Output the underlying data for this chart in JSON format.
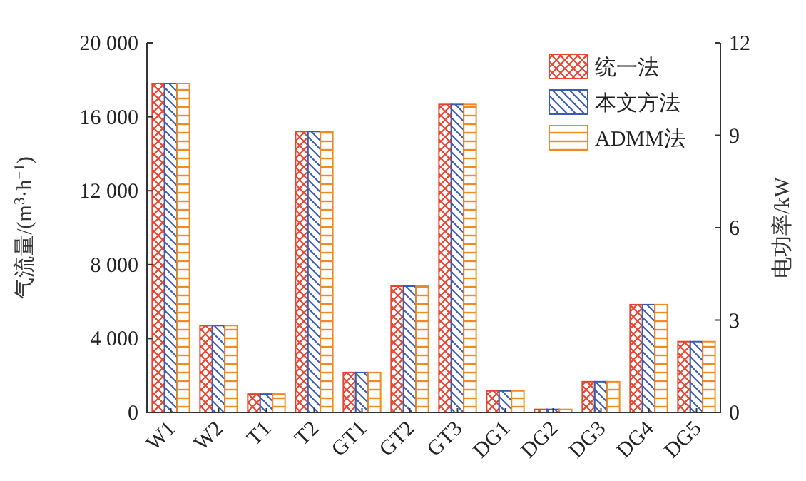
{
  "chart_data": {
    "type": "bar",
    "ylabel": "气流量/(m$^{3}$·h$^{−1}$)",
    "y2label": "电功率/kW",
    "categories": [
      "W1",
      "W2",
      "T1",
      "T2",
      "GT1",
      "GT2",
      "GT3",
      "DG1",
      "DG2",
      "DG3",
      "DG4",
      "DG5"
    ],
    "series": [
      {
        "name": "统一法",
        "color": "#e8412c",
        "axis": "y",
        "values": [
          17800,
          4700,
          1000,
          15200,
          null,
          null,
          null,
          null,
          null,
          null,
          null,
          null
        ]
      },
      {
        "name": "本文方法",
        "color": "#3a5bb0",
        "axis": "y",
        "values": [
          17800,
          4700,
          1000,
          15200,
          null,
          null,
          null,
          null,
          null,
          null,
          null,
          null
        ]
      },
      {
        "name": "ADMM法",
        "color": "#f08a24",
        "axis": "y",
        "values": [
          17800,
          4700,
          1000,
          15200,
          null,
          null,
          null,
          null,
          null,
          null,
          null,
          null
        ]
      },
      {
        "color": "#e8412c",
        "axis": "y2",
        "values": [
          null,
          null,
          null,
          null,
          1.3,
          4.1,
          10,
          0.7,
          0.1,
          1,
          3.5,
          2.3
        ]
      },
      {
        "color": "#3a5bb0",
        "axis": "y2",
        "values": [
          null,
          null,
          null,
          null,
          1.3,
          4.1,
          10,
          0.7,
          0.1,
          1,
          3.5,
          2.3
        ]
      },
      {
        "color": "#f08a24",
        "axis": "y2",
        "values": [
          null,
          null,
          null,
          null,
          1.3,
          4.1,
          10,
          0.7,
          0.1,
          1,
          3.5,
          2.3
        ]
      }
    ],
    "ylim": [
      0,
      20000
    ],
    "yticks": [
      0,
      {
        "value": 4000,
        "label": "4 000"
      },
      {
        "value": 8000,
        "label": "8 000"
      },
      {
        "value": 12000,
        "label": "12 000"
      },
      {
        "value": 16000,
        "label": "16 000"
      },
      {
        "value": 20000,
        "label": "20 000"
      }
    ],
    "y2lim": [
      0,
      12
    ],
    "y2ticks": [
      0,
      3,
      6,
      9,
      12
    ],
    "legend": "top right",
    "grid": false
  }
}
